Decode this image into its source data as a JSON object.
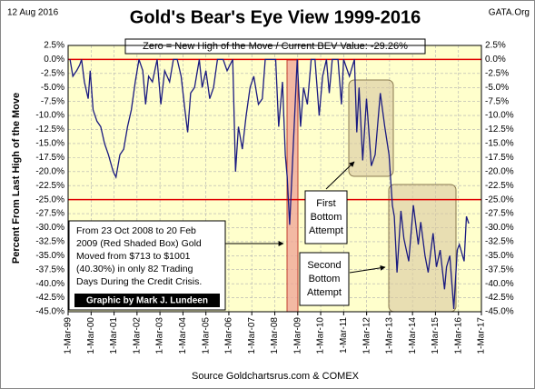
{
  "chart_data": {
    "type": "line",
    "title": "Gold's Bear's Eye View 1999-2016",
    "date_label": "12 Aug 2016",
    "site_label": "GATA.Org",
    "subtitle": "Zero = New High of the Move / Current BEV Value:  -29.26%",
    "y_label": "Percent  From Last High of the Move",
    "source": "Source Goldchartsrus.com & COMEX",
    "credit": "Graphic by Mark J. Lundeen",
    "annotation": [
      "From 23 Oct 2008 to 20 Feb",
      "2009 (Red Shaded Box)  Gold",
      "Moved from $713 to $1001",
      "(40.30%) in only 82 Trading",
      "Days During the Credit Crisis."
    ],
    "first_note": [
      "First",
      "Bottom",
      "Attempt"
    ],
    "second_note": [
      "Second",
      "Bottom",
      "Attempt"
    ],
    "ylim": [
      -45,
      2.5
    ],
    "yticks": [
      {
        "value": 2.5,
        "label": "2.5%"
      },
      {
        "value": 0,
        "label": "0.0%"
      },
      {
        "value": -2.5,
        "label": "-2.5%"
      },
      {
        "value": -5,
        "label": "-5.0%"
      },
      {
        "value": -7.5,
        "label": "-7.5%"
      },
      {
        "value": -10,
        "label": "-10.0%"
      },
      {
        "value": -12.5,
        "label": "-12.5%"
      },
      {
        "value": -15,
        "label": "-15.0%"
      },
      {
        "value": -17.5,
        "label": "-17.5%"
      },
      {
        "value": -20,
        "label": "-20.0%"
      },
      {
        "value": -22.5,
        "label": "-22.5%"
      },
      {
        "value": -25,
        "label": "-25.0%"
      },
      {
        "value": -27.5,
        "label": "-27.5%"
      },
      {
        "value": -30,
        "label": "-30.0%"
      },
      {
        "value": -32.5,
        "label": "-32.5%"
      },
      {
        "value": -35,
        "label": "-35.0%"
      },
      {
        "value": -37.5,
        "label": "-37.5%"
      },
      {
        "value": -40,
        "label": "-40.0%"
      },
      {
        "value": -42.5,
        "label": "-42.5%"
      },
      {
        "value": -45,
        "label": "-45.0%"
      }
    ],
    "xlim": [
      "1999-03-01",
      "2017-03-01"
    ],
    "xticks": [
      {
        "value": "1999-03-01",
        "label": "1-Mar-99"
      },
      {
        "value": "2000-03-01",
        "label": "1-Mar-00"
      },
      {
        "value": "2001-03-01",
        "label": "1-Mar-01"
      },
      {
        "value": "2002-03-01",
        "label": "1-Mar-02"
      },
      {
        "value": "2003-03-01",
        "label": "1-Mar-03"
      },
      {
        "value": "2004-03-01",
        "label": "1-Mar-04"
      },
      {
        "value": "2005-03-01",
        "label": "1-Mar-05"
      },
      {
        "value": "2006-03-01",
        "label": "1-Mar-06"
      },
      {
        "value": "2007-03-01",
        "label": "1-Mar-07"
      },
      {
        "value": "2008-03-01",
        "label": "1-Mar-08"
      },
      {
        "value": "2009-03-01",
        "label": "1-Mar-09"
      },
      {
        "value": "2010-03-01",
        "label": "1-Mar-10"
      },
      {
        "value": "2011-03-01",
        "label": "1-Mar-11"
      },
      {
        "value": "2012-03-01",
        "label": "1-Mar-12"
      },
      {
        "value": "2013-03-01",
        "label": "1-Mar-13"
      },
      {
        "value": "2014-03-01",
        "label": "1-Mar-14"
      },
      {
        "value": "2015-03-01",
        "label": "1-Mar-15"
      },
      {
        "value": "2016-03-01",
        "label": "1-Mar-16"
      },
      {
        "value": "2017-03-01",
        "label": "1-Mar-17"
      }
    ],
    "ref_lines": [
      0,
      -25
    ],
    "ref_color": "#e00000",
    "grid": true,
    "color": "#1a1a80",
    "x": [
      "1999-04-01",
      "1999-05-15",
      "1999-07-15",
      "1999-09-01",
      "1999-10-01",
      "1999-11-15",
      "2000-01-15",
      "2000-02-15",
      "2000-04-01",
      "2000-06-01",
      "2000-08-01",
      "2000-10-01",
      "2000-12-01",
      "2001-02-15",
      "2001-04-01",
      "2001-06-01",
      "2001-08-01",
      "2001-10-01",
      "2001-12-01",
      "2002-02-01",
      "2002-04-01",
      "2002-06-01",
      "2002-07-15",
      "2002-09-01",
      "2002-11-01",
      "2003-01-15",
      "2003-03-15",
      "2003-05-15",
      "2003-08-01",
      "2003-10-01",
      "2003-12-01",
      "2004-02-01",
      "2004-04-01",
      "2004-05-15",
      "2004-07-01",
      "2004-09-01",
      "2004-11-15",
      "2005-01-01",
      "2005-03-01",
      "2005-05-01",
      "2005-07-01",
      "2005-09-01",
      "2005-12-01",
      "2006-02-01",
      "2006-05-01",
      "2006-06-15",
      "2006-08-01",
      "2006-10-01",
      "2006-12-01",
      "2007-02-01",
      "2007-04-01",
      "2007-06-15",
      "2007-08-15",
      "2007-10-01",
      "2007-12-01",
      "2008-03-15",
      "2008-05-01",
      "2008-07-01",
      "2008-08-15",
      "2008-09-15",
      "2008-10-23",
      "2008-12-01",
      "2009-02-20",
      "2009-04-15",
      "2009-06-01",
      "2009-08-01",
      "2009-10-01",
      "2009-12-01",
      "2010-02-05",
      "2010-04-01",
      "2010-06-01",
      "2010-07-15",
      "2010-09-01",
      "2010-12-01",
      "2011-01-25",
      "2011-03-01",
      "2011-06-01",
      "2011-08-20",
      "2011-09-26",
      "2011-11-01",
      "2011-12-29",
      "2012-02-28",
      "2012-05-15",
      "2012-07-15",
      "2012-10-05",
      "2012-12-15",
      "2013-02-20",
      "2013-04-15",
      "2013-05-15",
      "2013-06-28",
      "2013-08-28",
      "2013-10-15",
      "2013-12-31",
      "2014-03-15",
      "2014-06-01",
      "2014-07-10",
      "2014-09-15",
      "2014-11-05",
      "2015-01-22",
      "2015-03-17",
      "2015-05-15",
      "2015-07-24",
      "2015-08-24",
      "2015-10-15",
      "2015-12-17",
      "2016-02-11",
      "2016-03-15",
      "2016-05-30",
      "2016-07-06",
      "2016-08-12"
    ],
    "values": [
      0,
      -3,
      -2,
      -1,
      0,
      -4,
      -7,
      -2,
      -9,
      -11,
      -12,
      -15,
      -17,
      -20,
      -21,
      -17,
      -16,
      -12,
      -9,
      -4,
      0,
      -2,
      -8,
      -3,
      -4,
      0,
      -8,
      -2,
      -4,
      0,
      0,
      -3,
      -9,
      -13,
      -6,
      -5,
      0,
      -5,
      -2,
      -7,
      -5,
      0,
      0,
      -2,
      0,
      -20,
      -12,
      -16,
      -10,
      -5,
      -3,
      -8,
      -7,
      0,
      0,
      0,
      -12,
      -4,
      -17,
      -21,
      -29.5,
      -20,
      0,
      -12,
      -5,
      -8,
      0,
      0,
      -10,
      -3,
      0,
      -6,
      0,
      0,
      -8,
      0,
      -3,
      0,
      -13,
      -5,
      -18,
      -7,
      -19,
      -17,
      -6,
      -12,
      -17,
      -26,
      -28,
      -38,
      -27,
      -32,
      -36,
      -26,
      -33,
      -29,
      -35,
      -38,
      -31,
      -37,
      -34,
      -41,
      -37,
      -35,
      -44.5,
      -34,
      -33,
      -36,
      -28,
      -29.26
    ]
  }
}
